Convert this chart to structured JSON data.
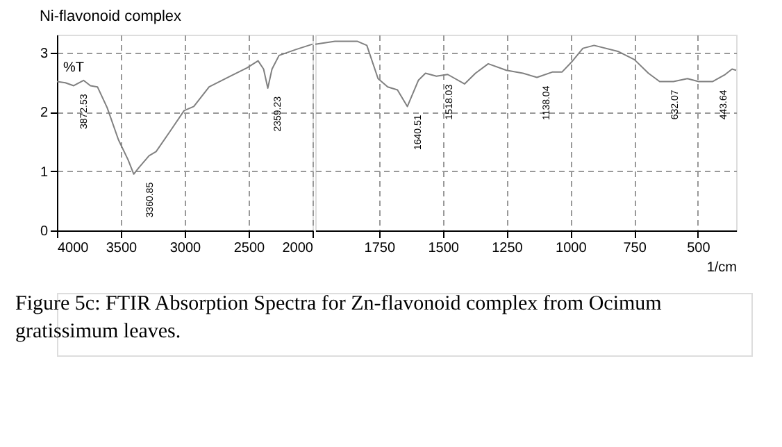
{
  "chart_data": [
    {
      "type": "line",
      "title": "Ni-flavonoid complex",
      "ylabel": "%T",
      "xlim": [
        4000,
        2000
      ],
      "xticks": [
        4000,
        3500,
        3000,
        2500,
        2000
      ],
      "ylim": [
        0,
        3.3
      ],
      "yticks": [
        0,
        1,
        2,
        3
      ],
      "grid": true,
      "x": [
        4000,
        3934,
        3869,
        3792,
        3738,
        3683,
        3607,
        3519,
        3443,
        3399,
        3355,
        3279,
        3224,
        3115,
        3005,
        2929,
        2809,
        2645,
        2514,
        2426,
        2383,
        2350,
        2317,
        2262,
        2131,
        2000
      ],
      "series": [
        {
          "color": "#808080",
          "values": [
            2.51,
            2.49,
            2.44,
            2.53,
            2.44,
            2.42,
            2.07,
            1.53,
            1.19,
            0.95,
            1.07,
            1.26,
            1.33,
            1.67,
            2.02,
            2.09,
            2.42,
            2.6,
            2.74,
            2.86,
            2.72,
            2.4,
            2.72,
            2.95,
            3.05,
            3.14
          ]
        }
      ],
      "annotations": [
        {
          "text": "3872.53",
          "x": 3872.53,
          "y": 2.44
        },
        {
          "text": "3360.85",
          "x": 3360.85,
          "y": 0.95
        },
        {
          "text": "2359.23",
          "x": 2359.23,
          "y": 2.4
        },
        "Figure 5c: FTIR Absorption Spectra for Zn-flavonoid complex from Ocimum gratissimum leaves."
      ]
    },
    {
      "type": "line",
      "xlabel": "1/cm",
      "xlim": [
        2000,
        350
      ],
      "xticks": [
        1750,
        1500,
        1250,
        1000,
        750,
        500
      ],
      "ylim": [
        0,
        3.3
      ],
      "yticks": [
        0,
        1,
        2,
        3
      ],
      "grid": true,
      "tick_labels": "x",
      "x": [
        2000,
        1923,
        1836,
        1798,
        1754,
        1716,
        1678,
        1639,
        1596,
        1568,
        1525,
        1481,
        1415,
        1372,
        1322,
        1251,
        1186,
        1131,
        1071,
        1033,
        995,
        951,
        907,
        814,
        749,
        694,
        650,
        596,
        541,
        497,
        443,
        393,
        366,
        350
      ],
      "series": [
        {
          "color": "#808080",
          "values": [
            3.14,
            3.19,
            3.19,
            3.12,
            2.56,
            2.42,
            2.37,
            2.09,
            2.53,
            2.65,
            2.6,
            2.63,
            2.47,
            2.65,
            2.81,
            2.7,
            2.65,
            2.58,
            2.67,
            2.67,
            2.84,
            3.07,
            3.12,
            3.02,
            2.88,
            2.65,
            2.51,
            2.51,
            2.56,
            2.51,
            2.51,
            2.63,
            2.72,
            2.7
          ]
        }
      ],
      "annotations": [
        {
          "text": "1640.51",
          "x": 1640.51,
          "y": 2.09
        },
        {
          "text": "1518.03",
          "x": 1518.03,
          "y": 2.6
        },
        {
          "text": "1138.04",
          "x": 1138.04,
          "y": 2.58
        },
        {
          "text": "632.07",
          "x": 632.07,
          "y": 2.51
        },
        {
          "text": "443.64",
          "x": 443.64,
          "y": 2.51
        }
      ]
    }
  ]
}
